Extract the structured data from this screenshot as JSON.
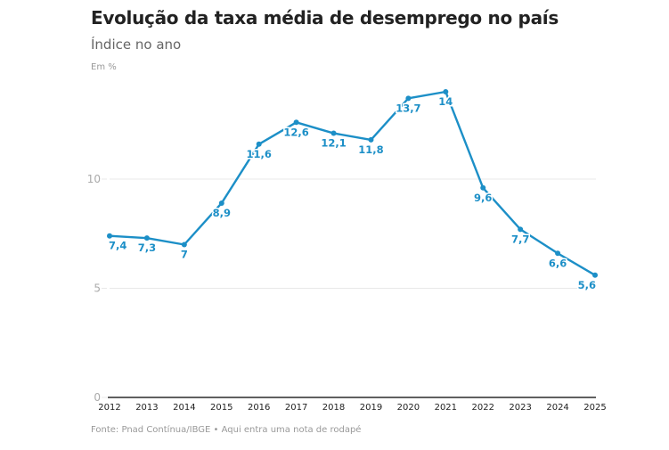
{
  "header": {
    "title": "Evolução da taxa média de desemprego no país",
    "subtitle": "Índice no ano",
    "unit": "Em %"
  },
  "footer": {
    "source": "Fonte: Pnad Contínua/IBGE • Aqui entra uma nota de rodapé"
  },
  "colors": {
    "line": "#1c8fc7",
    "grid": "#e8e8e8",
    "axis": "#000000"
  },
  "chart_data": {
    "type": "line",
    "title": "Evolução da taxa média de desemprego no país",
    "subtitle": "Índice no ano",
    "xlabel": "",
    "ylabel": "Em %",
    "x": [
      "2012",
      "2013",
      "2014",
      "2015",
      "2016",
      "2017",
      "2018",
      "2019",
      "2020",
      "2021",
      "2022",
      "2023",
      "2024",
      "2025"
    ],
    "series": [
      {
        "name": "Taxa média de desemprego",
        "values": [
          7.4,
          7.3,
          7,
          8.9,
          11.6,
          12.6,
          12.1,
          11.8,
          13.7,
          14,
          9.6,
          7.7,
          6.6,
          5.6
        ],
        "labels": [
          "7,4",
          "7,3",
          "7",
          "8,9",
          "11,6",
          "12,6",
          "12,1",
          "11,8",
          "13,7",
          "14",
          "9,6",
          "7,7",
          "6,6",
          "5,6"
        ]
      }
    ],
    "yticks": [
      0,
      5,
      10
    ],
    "ytick_labels": [
      "0",
      "5",
      "10"
    ],
    "ylim": [
      0,
      14.5
    ],
    "grid": true,
    "legend": "none"
  }
}
